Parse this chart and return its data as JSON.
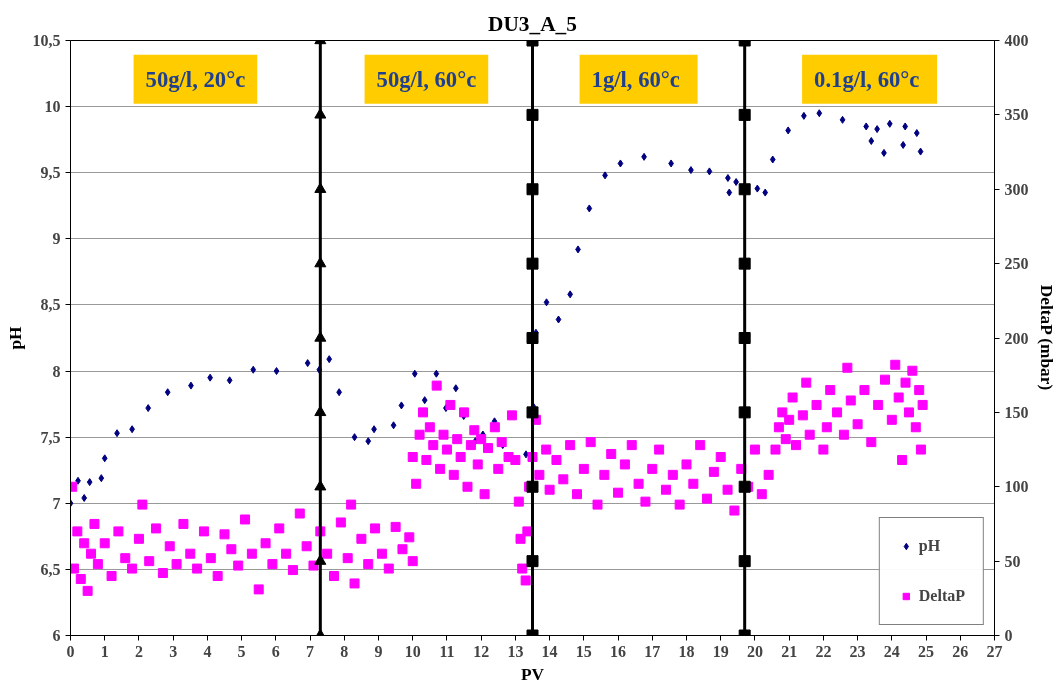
{
  "chart_data": {
    "type": "scatter",
    "title": "DU3_A_5",
    "xlabel": "PV",
    "ylabel": "pH",
    "y2label": "DeltaP (mbar)",
    "annotations": [
      "50g/l, 20°c",
      "50g/l, 60°c",
      "1g/l,  60°c",
      "0.1g/l,  60°c"
    ],
    "xlim": [
      0,
      27
    ],
    "xticks": [
      0,
      1,
      2,
      3,
      4,
      5,
      6,
      7,
      8,
      9,
      10,
      11,
      12,
      13,
      14,
      15,
      16,
      17,
      18,
      19,
      20,
      21,
      22,
      23,
      24,
      25,
      26,
      27
    ],
    "ylim": [
      6,
      10.5
    ],
    "yticks": [
      6,
      {
        "value": 6.5,
        "label": "6,5"
      },
      7,
      {
        "value": 7.5,
        "label": "7,5"
      },
      8,
      {
        "value": 8.5,
        "label": "8,5"
      },
      9,
      {
        "value": 9.5,
        "label": "9,5"
      },
      10,
      {
        "value": 10.5,
        "label": "10,5"
      }
    ],
    "y2lim": [
      0,
      400
    ],
    "y2ticks": [
      0,
      50,
      100,
      150,
      200,
      250,
      300,
      350,
      400
    ],
    "grid": "y",
    "legend": "bottom right",
    "series": [
      {
        "name": "pH",
        "marker": "diamond",
        "color": "#000080",
        "x": [
          0,
          0.22,
          0.4,
          0.56,
          0.9,
          1.0,
          1.36,
          1.8,
          2.27,
          2.84,
          3.52,
          4.08,
          4.65,
          5.34,
          6.02,
          6.93,
          7.27,
          7.56,
          7.85,
          8.3,
          8.7,
          8.87,
          9.44,
          9.67,
          10.06,
          10.35,
          10.69,
          10.97,
          11.26,
          11.49,
          11.83,
          12.05,
          12.39,
          12.63,
          13.31,
          13.53,
          13.6,
          13.91,
          14.26,
          14.6,
          14.83,
          15.16,
          15.62,
          16.07,
          16.76,
          17.55,
          18.13,
          18.67,
          19.21,
          19.25,
          19.45,
          20.07,
          20.3,
          20.52,
          20.97,
          21.43,
          21.88,
          22.56,
          23.25,
          23.4,
          23.57,
          23.77,
          23.94,
          24.33,
          24.39,
          24.73,
          24.84
        ],
        "values": [
          7.0,
          7.17,
          7.04,
          7.16,
          7.19,
          7.34,
          7.53,
          7.56,
          7.72,
          7.84,
          7.89,
          7.95,
          7.93,
          8.01,
          8.0,
          8.06,
          8.01,
          8.09,
          7.84,
          7.5,
          7.47,
          7.56,
          7.59,
          7.74,
          7.98,
          7.78,
          7.98,
          7.72,
          7.87,
          7.66,
          7.47,
          7.52,
          7.62,
          7.44,
          7.37,
          7.73,
          8.29,
          8.52,
          8.39,
          8.58,
          8.92,
          9.23,
          9.48,
          9.57,
          9.62,
          9.57,
          9.52,
          9.51,
          9.46,
          9.35,
          9.43,
          9.38,
          9.35,
          9.6,
          9.82,
          9.93,
          9.95,
          9.9,
          9.85,
          9.74,
          9.83,
          9.65,
          9.87,
          9.71,
          9.85,
          9.8,
          9.66
        ]
      },
      {
        "name": "DeltaP",
        "marker": "square",
        "color": "#ff00ff",
        "axis": "y2",
        "x": [
          0.05,
          0.1,
          0.2,
          0.3,
          0.4,
          0.5,
          0.6,
          0.7,
          0.8,
          1.0,
          1.2,
          1.4,
          1.6,
          1.8,
          2.0,
          2.1,
          2.3,
          2.5,
          2.7,
          2.9,
          3.1,
          3.3,
          3.5,
          3.7,
          3.9,
          4.1,
          4.3,
          4.5,
          4.7,
          4.9,
          5.1,
          5.3,
          5.5,
          5.7,
          5.9,
          6.1,
          6.3,
          6.5,
          6.7,
          6.9,
          7.1,
          7.3,
          7.5,
          7.7,
          7.9,
          8.1,
          8.2,
          8.3,
          8.5,
          8.7,
          8.9,
          9.1,
          9.3,
          9.5,
          9.7,
          9.9,
          10.0,
          10.0,
          10.1,
          10.2,
          10.3,
          10.4,
          10.5,
          10.6,
          10.7,
          10.8,
          10.9,
          11.0,
          11.1,
          11.2,
          11.3,
          11.4,
          11.5,
          11.6,
          11.7,
          11.8,
          11.9,
          12.0,
          12.1,
          12.2,
          12.4,
          12.5,
          12.6,
          12.8,
          12.9,
          13.0,
          13.1,
          13.15,
          13.2,
          13.3,
          13.35,
          13.4,
          13.5,
          13.6,
          13.7,
          13.9,
          14.0,
          14.2,
          14.4,
          14.6,
          14.8,
          15.0,
          15.2,
          15.4,
          15.6,
          15.8,
          16.0,
          16.2,
          16.4,
          16.6,
          16.8,
          17.0,
          17.2,
          17.4,
          17.6,
          17.8,
          18.0,
          18.2,
          18.4,
          18.6,
          18.8,
          19.0,
          19.2,
          19.4,
          19.6,
          19.8,
          20.0,
          20.2,
          20.4,
          20.6,
          20.7,
          20.8,
          20.9,
          21.0,
          21.1,
          21.2,
          21.4,
          21.5,
          21.6,
          21.8,
          22.0,
          22.1,
          22.2,
          22.4,
          22.6,
          22.7,
          22.8,
          23.0,
          23.2,
          23.4,
          23.6,
          23.8,
          24.0,
          24.1,
          24.2,
          24.3,
          24.4,
          24.5,
          24.6,
          24.7,
          24.8,
          24.85,
          24.9
        ],
        "values": [
          100,
          45,
          70,
          38,
          62,
          30,
          55,
          75,
          48,
          62,
          40,
          70,
          52,
          45,
          65,
          88,
          50,
          72,
          42,
          60,
          48,
          75,
          55,
          45,
          70,
          52,
          40,
          68,
          58,
          47,
          78,
          55,
          31,
          62,
          48,
          72,
          55,
          44,
          82,
          60,
          47,
          70,
          55,
          40,
          76,
          52,
          88,
          35,
          65,
          48,
          72,
          55,
          45,
          73,
          58,
          66,
          50,
          120,
          102,
          135,
          150,
          118,
          140,
          128,
          168,
          112,
          135,
          125,
          155,
          108,
          132,
          120,
          150,
          100,
          128,
          138,
          115,
          132,
          95,
          126,
          140,
          112,
          130,
          120,
          148,
          118,
          90,
          65,
          45,
          37,
          70,
          100,
          120,
          145,
          108,
          125,
          98,
          118,
          105,
          128,
          95,
          112,
          130,
          88,
          108,
          122,
          96,
          115,
          128,
          102,
          90,
          112,
          125,
          98,
          108,
          88,
          115,
          102,
          128,
          92,
          110,
          120,
          98,
          84,
          112,
          100,
          125,
          95,
          108,
          125,
          140,
          150,
          132,
          145,
          160,
          128,
          148,
          170,
          135,
          155,
          125,
          140,
          165,
          150,
          135,
          180,
          158,
          142,
          165,
          130,
          155,
          172,
          145,
          182,
          160,
          118,
          170,
          150,
          178,
          140,
          165,
          125,
          155
        ]
      },
      {
        "type": "line",
        "marker": "triangle",
        "color": "#000000",
        "axis": "y2",
        "x": [
          7.3,
          7.3,
          7.3,
          7.3,
          7.3,
          7.3,
          7.3,
          7.3,
          7.3
        ],
        "values": [
          0,
          50,
          100,
          150,
          200,
          250,
          300,
          350,
          400
        ]
      },
      {
        "type": "line",
        "marker": "square",
        "color": "#000000",
        "axis": "y2",
        "x": [
          13.5,
          13.5,
          13.5,
          13.5,
          13.5,
          13.5,
          13.5,
          13.5,
          13.5
        ],
        "values": [
          0,
          50,
          100,
          150,
          200,
          250,
          300,
          350,
          400
        ]
      },
      {
        "type": "line",
        "marker": "square",
        "color": "#000000",
        "axis": "y2",
        "x": [
          19.7,
          19.7,
          19.7,
          19.7,
          19.7,
          19.7,
          19.7,
          19.7,
          19.7
        ],
        "values": [
          0,
          50,
          100,
          150,
          200,
          250,
          300,
          350,
          400
        ]
      }
    ]
  }
}
